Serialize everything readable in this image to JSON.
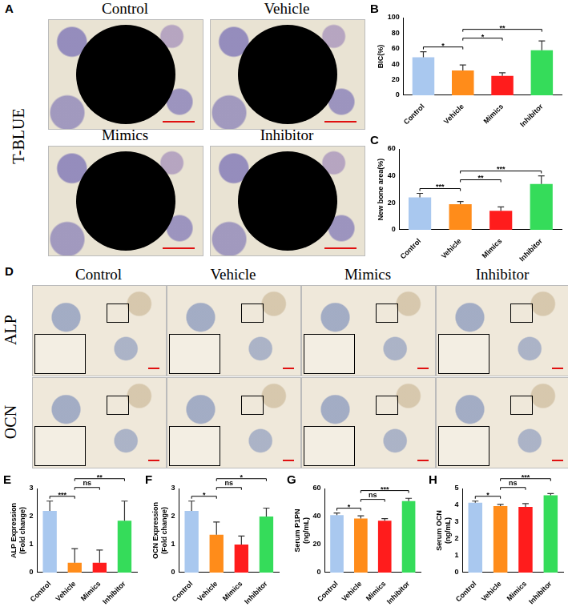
{
  "chart_data": [
    {
      "panel": "B",
      "type": "bar",
      "categories": [
        "Control",
        "Vehicle",
        "Mimics",
        "Inhibitor"
      ],
      "values": [
        49,
        32,
        25,
        58
      ],
      "errors": [
        7,
        7,
        4,
        12
      ],
      "colors": [
        "#a9c8ef",
        "#ff8c1a",
        "#ff1c1c",
        "#35dc5a"
      ],
      "ylabel": [
        "BIC(%)"
      ],
      "ylim": [
        0,
        100
      ],
      "yticks": [
        0,
        20,
        40,
        60,
        80,
        100
      ],
      "grid": false,
      "comparisons": [
        {
          "from": "Control",
          "to": "Vehicle",
          "label": "*"
        },
        {
          "from": "Vehicle",
          "to": "Mimics",
          "label": "*"
        },
        {
          "from": "Vehicle",
          "to": "Inhibitor",
          "label": "**"
        }
      ]
    },
    {
      "panel": "C",
      "type": "bar",
      "categories": [
        "Control",
        "Vehicle",
        "Mimics",
        "Inhibitor"
      ],
      "values": [
        24,
        19,
        14,
        34
      ],
      "errors": [
        3,
        2,
        3,
        6
      ],
      "colors": [
        "#a9c8ef",
        "#ff8c1a",
        "#ff1c1c",
        "#35dc5a"
      ],
      "ylabel": [
        "New bone area(%)"
      ],
      "ylim": [
        0,
        60
      ],
      "yticks": [
        0,
        20,
        40,
        60
      ],
      "grid": false,
      "comparisons": [
        {
          "from": "Control",
          "to": "Vehicle",
          "label": "***"
        },
        {
          "from": "Vehicle",
          "to": "Mimics",
          "label": "**"
        },
        {
          "from": "Vehicle",
          "to": "Inhibitor",
          "label": "***"
        }
      ]
    },
    {
      "panel": "E",
      "type": "bar",
      "categories": [
        "Control",
        "Vehicle",
        "Mimics",
        "Inhibitor"
      ],
      "values": [
        2.2,
        0.35,
        0.35,
        1.85
      ],
      "errors": [
        0.35,
        0.5,
        0.45,
        0.7
      ],
      "colors": [
        "#a9c8ef",
        "#ff8c1a",
        "#ff1c1c",
        "#35dc5a"
      ],
      "ylabel": [
        "ALP Expression",
        "(Fold change)"
      ],
      "ylim": [
        0,
        3
      ],
      "yticks": [
        0,
        1,
        2,
        3
      ],
      "grid": false,
      "comparisons": [
        {
          "from": "Control",
          "to": "Vehicle",
          "label": "***"
        },
        {
          "from": "Vehicle",
          "to": "Mimics",
          "label": "ns"
        },
        {
          "from": "Vehicle",
          "to": "Inhibitor",
          "label": "**"
        }
      ]
    },
    {
      "panel": "F",
      "type": "bar",
      "categories": [
        "Control",
        "Vehicle",
        "Mimics",
        "Inhibitor"
      ],
      "values": [
        2.2,
        1.35,
        1.0,
        2.0
      ],
      "errors": [
        0.35,
        0.45,
        0.3,
        0.3
      ],
      "colors": [
        "#a9c8ef",
        "#ff8c1a",
        "#ff1c1c",
        "#35dc5a"
      ],
      "ylabel": [
        "OCN Expression",
        "(Fold change)"
      ],
      "ylim": [
        0,
        3
      ],
      "yticks": [
        0,
        1,
        2,
        3
      ],
      "grid": false,
      "comparisons": [
        {
          "from": "Control",
          "to": "Vehicle",
          "label": "*"
        },
        {
          "from": "Vehicle",
          "to": "Mimics",
          "label": "ns"
        },
        {
          "from": "Vehicle",
          "to": "Inhibitor",
          "label": "*"
        }
      ]
    },
    {
      "panel": "G",
      "type": "bar",
      "categories": [
        "Control",
        "Vehicle",
        "Mimics",
        "Inhibitor"
      ],
      "values": [
        41,
        38.5,
        37,
        51
      ],
      "errors": [
        1.5,
        2,
        1.5,
        2
      ],
      "colors": [
        "#a9c8ef",
        "#ff8c1a",
        "#ff1c1c",
        "#35dc5a"
      ],
      "ylabel": [
        "Serum P1PN",
        "(ng/mL)"
      ],
      "ylim": [
        0,
        60
      ],
      "yticks": [
        0,
        20,
        40,
        60
      ],
      "grid": false,
      "comparisons": [
        {
          "from": "Control",
          "to": "Vehicle",
          "label": "*"
        },
        {
          "from": "Vehicle",
          "to": "Mimics",
          "label": "ns"
        },
        {
          "from": "Vehicle",
          "to": "Inhibitor",
          "label": "***"
        }
      ]
    },
    {
      "panel": "H",
      "type": "bar",
      "categories": [
        "Control",
        "Vehicle",
        "Mimics",
        "Inhibitor"
      ],
      "values": [
        4.15,
        3.95,
        3.9,
        4.6
      ],
      "errors": [
        0.1,
        0.1,
        0.2,
        0.1
      ],
      "colors": [
        "#a9c8ef",
        "#ff8c1a",
        "#ff1c1c",
        "#35dc5a"
      ],
      "ylabel": [
        "Serum OCN",
        "(ng/mL)"
      ],
      "ylim": [
        0,
        5
      ],
      "yticks": [
        0,
        1,
        2,
        3,
        4,
        5
      ],
      "grid": false,
      "comparisons": [
        {
          "from": "Control",
          "to": "Vehicle",
          "label": "*"
        },
        {
          "from": "Vehicle",
          "to": "Mimics",
          "label": "ns"
        },
        {
          "from": "Vehicle",
          "to": "Inhibitor",
          "label": "***"
        }
      ]
    }
  ],
  "image_panels": [
    {
      "panel": "A",
      "stain": "T-BLUE",
      "images": [
        "Control",
        "Vehicle",
        "Mimics",
        "Inhibitor"
      ]
    },
    {
      "panel": "D",
      "columns": [
        "Control",
        "Vehicle",
        "Mimics",
        "Inhibitor"
      ],
      "rows": [
        "ALP",
        "OCN"
      ]
    }
  ]
}
